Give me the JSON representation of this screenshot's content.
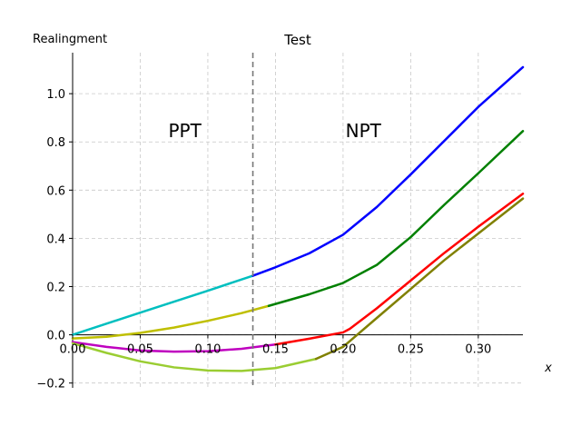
{
  "chart_data": {
    "type": "line",
    "title": "Test",
    "ylabel": "Realingment",
    "xlabel": "x",
    "xlim": [
      0.0,
      0.333
    ],
    "ylim": [
      -0.22,
      1.17
    ],
    "grid": true,
    "x_ticks": [
      0.0,
      0.05,
      0.1,
      0.15,
      0.2,
      0.25,
      0.3
    ],
    "x_tick_labels": [
      "0.00",
      "0.05",
      "0.10",
      "0.15",
      "0.20",
      "0.25",
      "0.30"
    ],
    "y_ticks": [
      -0.2,
      0.0,
      0.2,
      0.4,
      0.6,
      0.8,
      1.0
    ],
    "y_tick_labels": [
      "−0.2",
      "0.0",
      "0.2",
      "0.4",
      "0.6",
      "0.8",
      "1.0"
    ],
    "boundary_x": 0.1333,
    "annotations": [
      {
        "text": "PPT",
        "x": 0.083,
        "y": 0.82
      },
      {
        "text": "NPT",
        "x": 0.215,
        "y": 0.82
      }
    ],
    "series": [
      {
        "color": "#00bfbf",
        "x": [
          0.0,
          0.05,
          0.1,
          0.1333
        ],
        "y": [
          0.0,
          0.092,
          0.183,
          0.245
        ]
      },
      {
        "color": "#0000ff",
        "x": [
          0.1333,
          0.15,
          0.175,
          0.2,
          0.225,
          0.25,
          0.275,
          0.3,
          0.333
        ],
        "y": [
          0.245,
          0.28,
          0.338,
          0.415,
          0.53,
          0.665,
          0.805,
          0.945,
          1.11
        ]
      },
      {
        "color": "#bfbf00",
        "x": [
          0.0,
          0.025,
          0.05,
          0.075,
          0.1,
          0.125,
          0.145
        ],
        "y": [
          -0.015,
          -0.008,
          0.008,
          0.03,
          0.058,
          0.09,
          0.12
        ]
      },
      {
        "color": "#008000",
        "x": [
          0.145,
          0.175,
          0.2,
          0.225,
          0.25,
          0.275,
          0.3,
          0.333
        ],
        "y": [
          0.12,
          0.168,
          0.215,
          0.29,
          0.405,
          0.54,
          0.67,
          0.845
        ]
      },
      {
        "color": "#bf00bf",
        "x": [
          0.0,
          0.025,
          0.05,
          0.075,
          0.1,
          0.125,
          0.15
        ],
        "y": [
          -0.03,
          -0.05,
          -0.065,
          -0.07,
          -0.068,
          -0.058,
          -0.04
        ]
      },
      {
        "color": "#ff0000",
        "x": [
          0.15,
          0.175,
          0.2,
          0.205,
          0.225,
          0.25,
          0.275,
          0.3,
          0.333
        ],
        "y": [
          -0.04,
          -0.016,
          0.01,
          0.025,
          0.11,
          0.225,
          0.34,
          0.448,
          0.585
        ]
      },
      {
        "color": "#9acd32",
        "x": [
          0.0,
          0.025,
          0.05,
          0.075,
          0.1,
          0.125,
          0.15,
          0.18
        ],
        "y": [
          -0.035,
          -0.075,
          -0.11,
          -0.135,
          -0.148,
          -0.15,
          -0.138,
          -0.1
        ]
      },
      {
        "color": "#808000",
        "x": [
          0.18,
          0.2,
          0.225,
          0.25,
          0.275,
          0.3,
          0.333
        ],
        "y": [
          -0.1,
          -0.05,
          0.07,
          0.19,
          0.31,
          0.42,
          0.565
        ]
      }
    ]
  }
}
